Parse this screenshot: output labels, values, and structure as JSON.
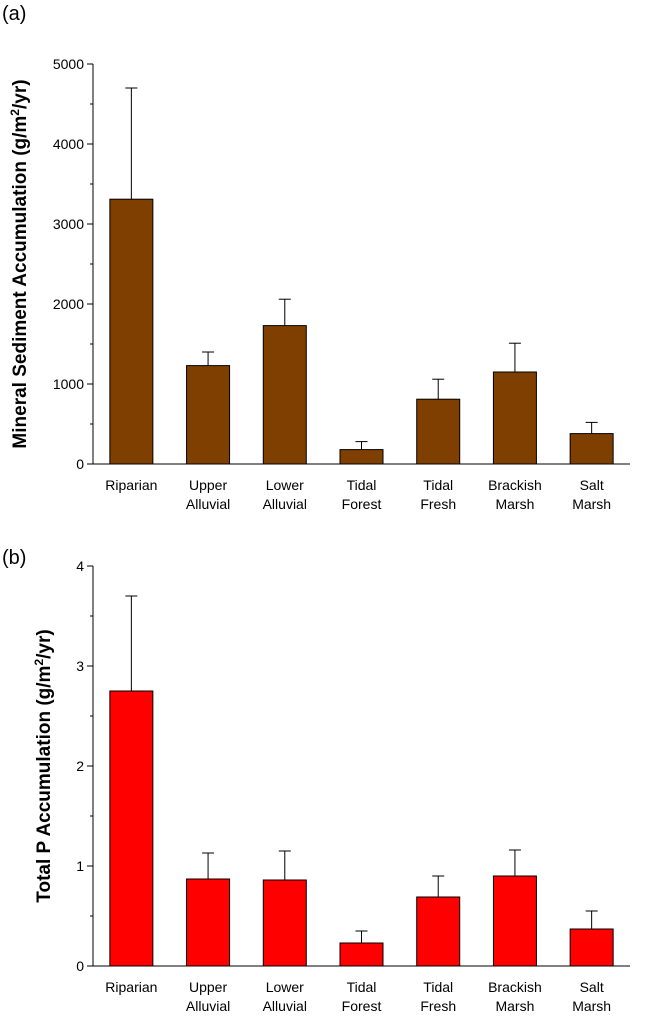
{
  "chart_data": [
    {
      "type": "bar",
      "panel_label": "(a)",
      "ylabel_main": "Mineral Sediment Accumulation (g/m",
      "ylabel_sup": "2",
      "ylabel_end": "/yr)",
      "categories": [
        [
          "Riparian"
        ],
        [
          "Upper",
          "Alluvial"
        ],
        [
          "Lower",
          "Alluvial"
        ],
        [
          "Tidal",
          "Forest"
        ],
        [
          "Tidal",
          "Fresh"
        ],
        [
          "Brackish",
          "Marsh"
        ],
        [
          "Salt",
          "Marsh"
        ]
      ],
      "values": [
        3310,
        1230,
        1730,
        180,
        810,
        1150,
        380
      ],
      "errors": [
        1390,
        170,
        330,
        100,
        250,
        360,
        140
      ],
      "ylim": [
        0,
        5000
      ],
      "yticks": [
        0,
        1000,
        2000,
        3000,
        4000,
        5000
      ],
      "color": "#7f3f00"
    },
    {
      "type": "bar",
      "panel_label": "(b)",
      "ylabel_main": "Total P Accumulation (g/m",
      "ylabel_sup": "2",
      "ylabel_end": "/yr)",
      "categories": [
        [
          "Riparian"
        ],
        [
          "Upper",
          "Alluvial"
        ],
        [
          "Lower",
          "Alluvial"
        ],
        [
          "Tidal",
          "Forest"
        ],
        [
          "Tidal",
          "Fresh"
        ],
        [
          "Brackish",
          "Marsh"
        ],
        [
          "Salt",
          "Marsh"
        ]
      ],
      "values": [
        2.75,
        0.87,
        0.86,
        0.23,
        0.69,
        0.9,
        0.37
      ],
      "errors": [
        0.95,
        0.26,
        0.29,
        0.12,
        0.21,
        0.26,
        0.18
      ],
      "ylim": [
        0,
        4
      ],
      "yticks": [
        0,
        1,
        2,
        3,
        4
      ],
      "color": "#ff0000"
    }
  ]
}
